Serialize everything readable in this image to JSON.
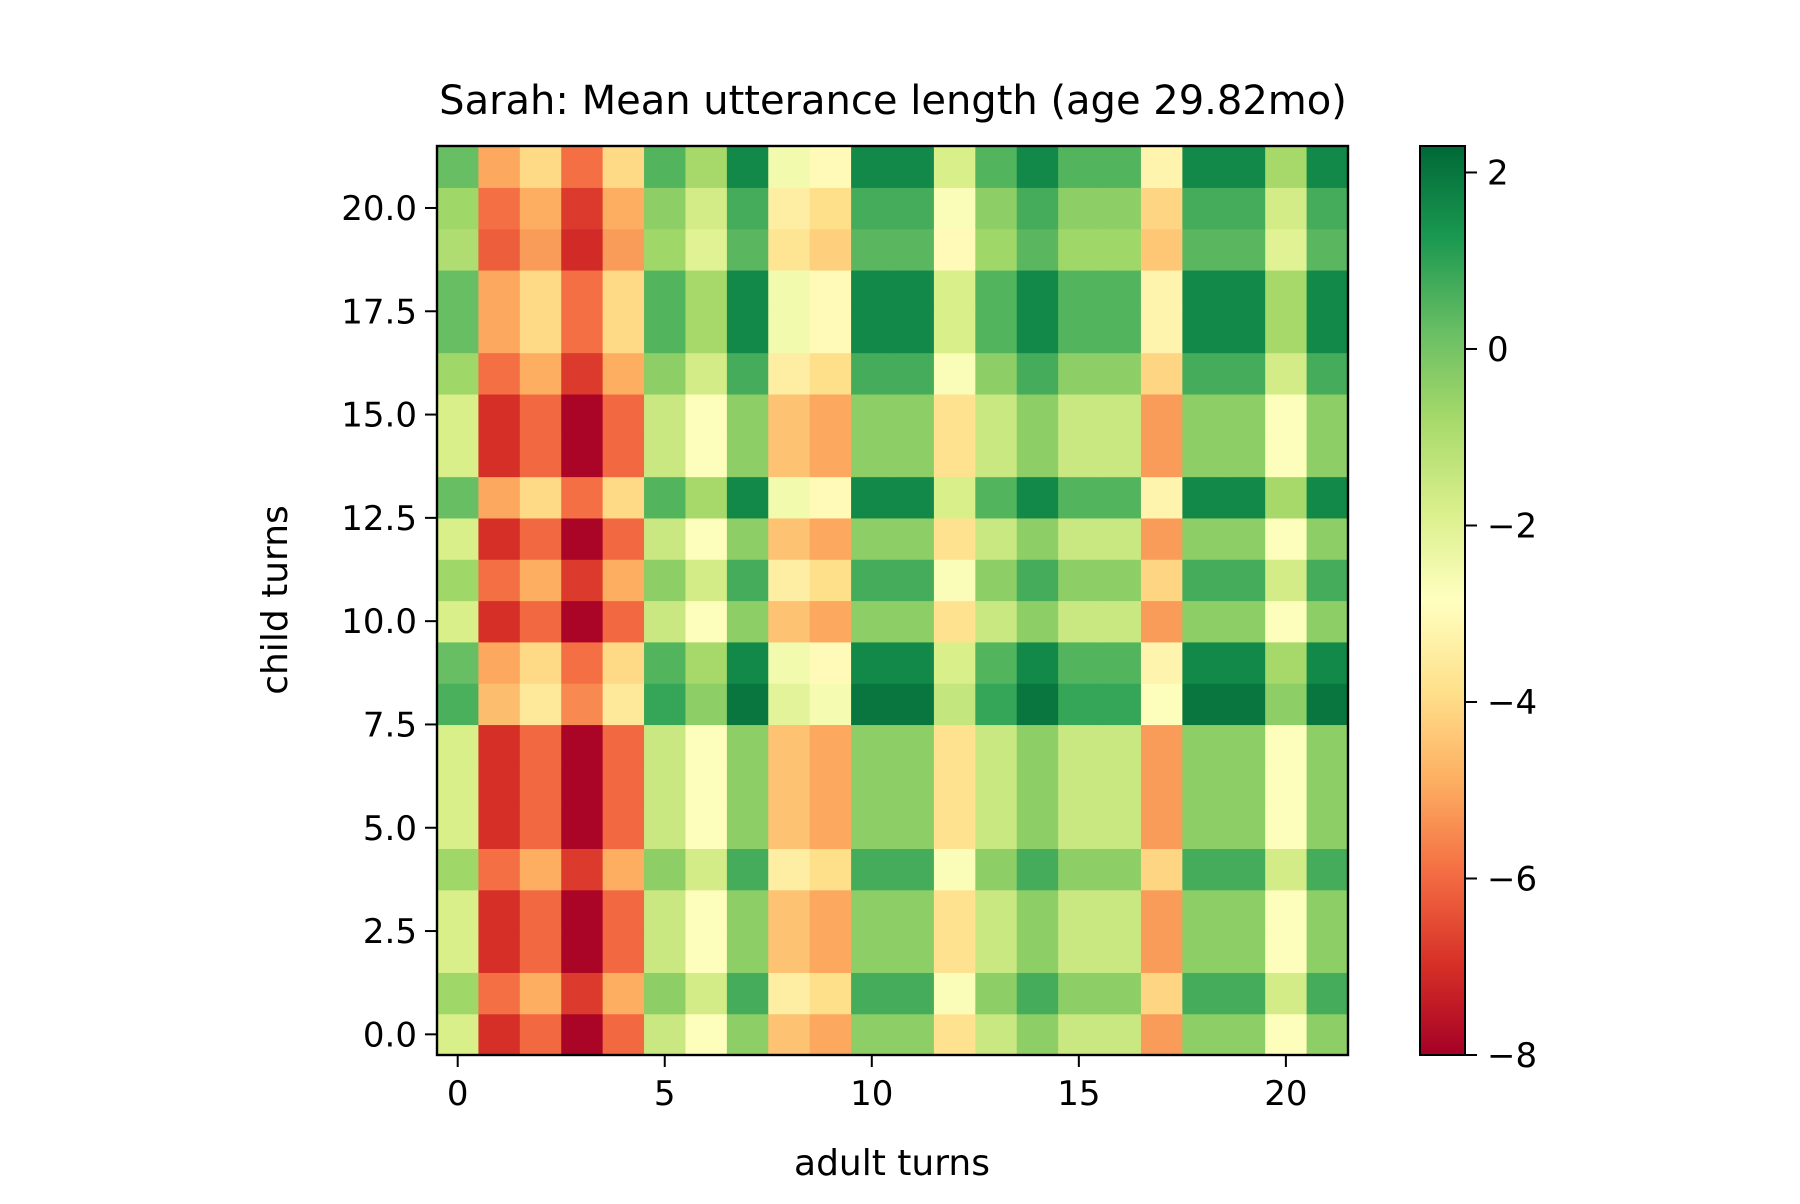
{
  "chart_data": {
    "type": "heatmap",
    "title": "Sarah: Mean utterance length (age 29.82mo)",
    "xlabel": "adult turns",
    "ylabel": "child turns",
    "colormap": "RdYlGn",
    "colormap_stops": [
      "#a50026",
      "#d73027",
      "#f46d43",
      "#fdae61",
      "#fee08b",
      "#ffffbf",
      "#d9ef8b",
      "#a6d96a",
      "#66bd63",
      "#1a9850",
      "#006837"
    ],
    "vmin": -8,
    "vmax": 2.3,
    "x_range": [
      -0.5,
      21.5
    ],
    "y_range": [
      -0.5,
      21.5
    ],
    "xticks": [
      0,
      5,
      10,
      15,
      20
    ],
    "xtick_labels": [
      "0",
      "5",
      "10",
      "15",
      "20"
    ],
    "yticks": [
      0,
      2.5,
      5,
      7.5,
      10,
      12.5,
      15,
      17.5,
      20
    ],
    "ytick_labels": [
      "0.0",
      "2.5",
      "5.0",
      "7.5",
      "10.0",
      "12.5",
      "15.0",
      "17.5",
      "20.0"
    ],
    "colorbar_ticks": [
      2,
      0,
      -2,
      -4,
      -6,
      -8
    ],
    "colorbar_tick_labels": [
      "2",
      "0",
      "−2",
      "−4",
      "−6",
      "−8"
    ],
    "col_values": [
      -1.8,
      -7.0,
      -6.0,
      -7.9,
      -6.0,
      -1.5,
      -2.8,
      -0.4,
      -4.5,
      -5.0,
      -0.4,
      -0.4,
      -3.8,
      -1.5,
      -0.4,
      -1.5,
      -1.5,
      -5.2,
      -0.4,
      -0.4,
      -2.8,
      -0.4
    ],
    "row_offsets": [
      0.0,
      1.1,
      0.0,
      0.0,
      1.1,
      0.0,
      0.0,
      0.0,
      2.4,
      2.0,
      0.0,
      1.1,
      0.0,
      2.0,
      0.0,
      0.0,
      1.1,
      2.0,
      2.0,
      0.8,
      1.1,
      2.0
    ],
    "note_values": "cell value = min(vmax, col_values[column] + row_offsets[row])"
  }
}
